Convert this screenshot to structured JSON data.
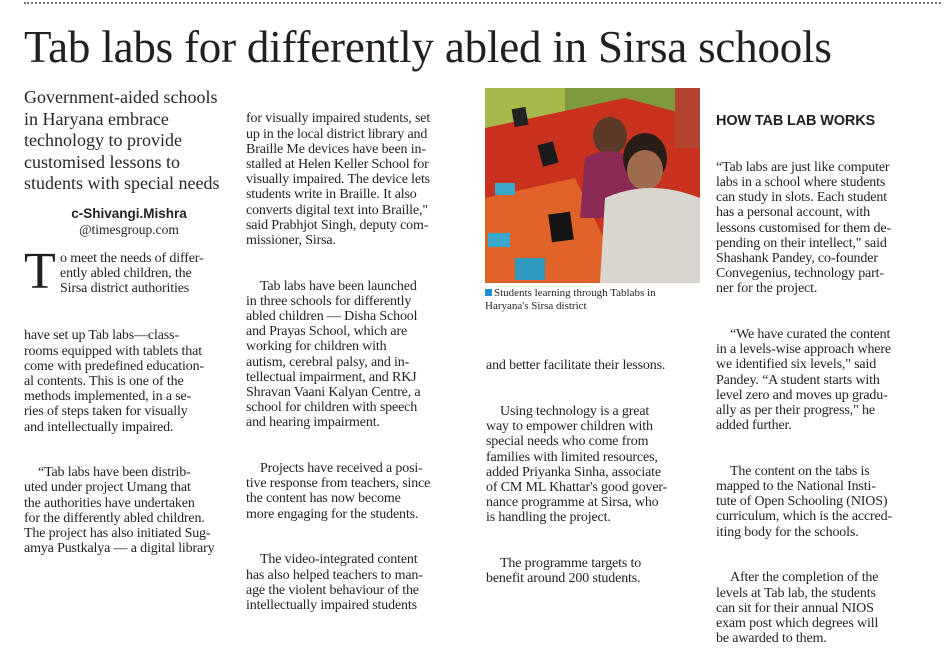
{
  "headline": "Tab labs for differently abled in Sirsa schools",
  "deck": "Government-aided schools\nin Haryana embrace\ntechnology to provide\ncustomised lessons to\nstudents with special needs",
  "byline": {
    "name": "c-Shivangi.Mishra",
    "handle": "@timesgroup.com"
  },
  "col1": {
    "drop_cap": "T",
    "p1_lead": "o meet the needs of differ-\nently abled children, the\nSirsa district authorities",
    "p1_rest": "have set up Tab labs—class-\nrooms equipped with tablets that\ncome with predefined education-\nal contents. This is one of the\nmethods implemented, in a se-\nries of steps taken for visually\nand intellectually impaired.",
    "p2": "“Tab labs have been distrib-\nuted under project Umang that\nthe authorities have undertaken\nfor the differently abled children.\nThe project has also initiated Sug-\namya Pustkalya — a digital library"
  },
  "col2": {
    "p1": "for visually impaired students, set\nup in the local district library and\nBraille Me devices have been in-\nstalled at Helen Keller School for\nvisually impaired. The device lets\nstudents write in Braille. It also\nconverts digital text into Braille,\"\nsaid Prabhjot Singh, deputy com-\nmissioner, Sirsa.",
    "p2": "Tab labs have been launched\nin three schools for differently\nabled children — Disha School\nand Prayas School, which are\nworking for children with\nautism, cerebral palsy, and in-\ntellectual impairment, and RKJ\nShravan Vaani Kalyan Centre, a\nschool for children with speech\nand hearing impairment.",
    "p3": "Projects have received a posi-\ntive response from teachers, since\nthe content has now become\nmore engaging for the students.",
    "p4": "The video-integrated content\nhas also helped teachers to man-\nage the violent behaviour of the\nintellectually impaired students"
  },
  "photo": {
    "caption": "Students learning through Tablabs in\nHaryana's Sirsa district",
    "caption_marker_color": "#1a8fd6"
  },
  "col3": {
    "p1": "and better facilitate their lessons.",
    "p2": "Using technology is a great\nway to empower children with\nspecial needs who come from\nfamilies with limited resources,\nadded Priyanka Sinha, associate\nof CM ML Khattar's good gover-\nnance programme at Sirsa, who\nis handling the project.",
    "p3": "The programme targets to\nbenefit around 200 students."
  },
  "col4": {
    "subhead": "HOW TAB LAB WORKS",
    "p1": "“Tab labs are just like computer\nlabs in a school where students\ncan study in slots. Each student\nhas a personal account, with\nlessons customised for them de-\npending on their intellect,\" said\nShashank Pandey, co-founder\nConvegenius, technology part-\nner for the project.",
    "p2": "“We have curated the content\nin a levels-wise approach where\nwe identified six levels,\" said\nPandey. “A student starts with\nlevel zero and moves up gradu-\nally as per their progress,\" he\nadded further.",
    "p3": "The content on the tabs is\nmapped to the National Insti-\ntute of Open Schooling (NIOS)\ncurriculum, which is the accred-\niting body for the schools.",
    "p4": "After the completion of the\nlevels at Tab lab, the students\ncan sit for their annual NIOS\nexam post which degrees will\nbe awarded to them."
  }
}
